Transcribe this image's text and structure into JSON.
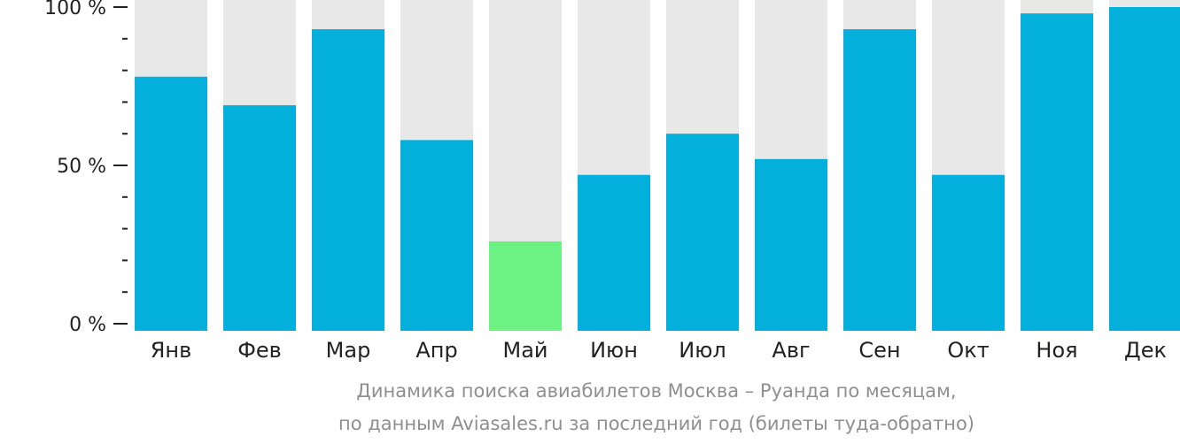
{
  "chart_data": {
    "type": "bar",
    "categories": [
      "Янв",
      "Фев",
      "Мар",
      "Апр",
      "Май",
      "Июн",
      "Июл",
      "Авг",
      "Сен",
      "Окт",
      "Ноя",
      "Дек"
    ],
    "values": [
      78,
      69,
      93,
      58,
      26,
      47,
      60,
      52,
      93,
      47,
      98,
      100
    ],
    "highlight_index": 4,
    "ylim": [
      0,
      100
    ],
    "y_ticks": [
      {
        "value": 100,
        "label": "100 %"
      },
      {
        "value": 50,
        "label": "50 %"
      },
      {
        "value": 0,
        "label": "0 %"
      }
    ],
    "minor_tick_step": 10,
    "colors": {
      "bar": "#03b0dc",
      "highlight": "#6cf183",
      "track": "#e8e8e8",
      "axis": "#222222"
    },
    "caption": [
      "Динамика поиска авиабилетов Москва – Руанда по месяцам,",
      "по данным Aviasales.ru за последний год (билеты туда-обратно)"
    ]
  }
}
